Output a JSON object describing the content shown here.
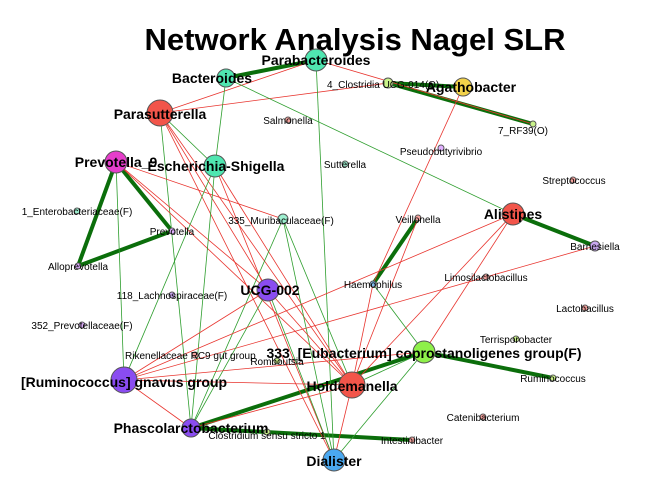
{
  "title": "Network Analysis Nagel SLR",
  "colors": {
    "positive_edge": "#2e9e2e",
    "strong_edge": "#0b6e0b",
    "negative_edge": "#e8352f",
    "node_border": "#555555"
  },
  "nodes": [
    {
      "id": "parabacteroides",
      "label": "Parabacteroides",
      "color": "#4fe6b0",
      "size": "large"
    },
    {
      "id": "bacteroides",
      "label": "Bacteroides",
      "color": "#4fe6b0",
      "size": "medium"
    },
    {
      "id": "clostridia_ucg014",
      "label": "4_Clostridia UCG-014(O)",
      "color": "#c9f28a",
      "size": "small"
    },
    {
      "id": "agathobacter",
      "label": "Agathobacter",
      "color": "#f2d24a",
      "size": "medium"
    },
    {
      "id": "rf39",
      "label": "7_RF39(O)",
      "color": "#c9f28a",
      "size": "tiny"
    },
    {
      "id": "parasutterella",
      "label": "Parasutterella",
      "color": "#f2554a",
      "size": "xlarge"
    },
    {
      "id": "salmonella",
      "label": "Salmonella",
      "color": "#f7a39e",
      "size": "tiny"
    },
    {
      "id": "pseudobutyrivibrio",
      "label": "Pseudobutyrivibrio",
      "color": "#e0b0ff",
      "size": "tiny"
    },
    {
      "id": "prevotella9",
      "label": "Prevotella_9",
      "color": "#e63ecb",
      "size": "large"
    },
    {
      "id": "escherichia",
      "label": "Escherichia-Shigella",
      "color": "#4fe6b0",
      "size": "large"
    },
    {
      "id": "sutterella",
      "label": "Sutterella",
      "color": "#9ef0d0",
      "size": "tiny"
    },
    {
      "id": "streptococcus",
      "label": "Streptococcus",
      "color": "#f7a39e",
      "size": "tiny"
    },
    {
      "id": "enterobacteriaceae",
      "label": "1_Enterobacteriaceae(F)",
      "color": "#9ef0d0",
      "size": "tiny"
    },
    {
      "id": "prevotella",
      "label": "Prevotella",
      "color": "#e0b0ff",
      "size": "tiny"
    },
    {
      "id": "muribaculaceae",
      "label": "335_Muribaculaceae(F)",
      "color": "#9ef0d0",
      "size": "small"
    },
    {
      "id": "veillonella",
      "label": "Veillonella",
      "color": "#f7a39e",
      "size": "tiny"
    },
    {
      "id": "alistipes",
      "label": "Alistipes",
      "color": "#f2554a",
      "size": "large"
    },
    {
      "id": "barnesiella",
      "label": "Barnesiella",
      "color": "#c9a8f0",
      "size": "small"
    },
    {
      "id": "alloprevotella",
      "label": "Alloprevotella",
      "color": "#e0b0ff",
      "size": "tiny"
    },
    {
      "id": "haemophilus",
      "label": "Haemophilus",
      "color": "#7fb8e8",
      "size": "tiny"
    },
    {
      "id": "limosilactobacillus",
      "label": "Limosilactobacillus",
      "color": "#f7a39e",
      "size": "tiny"
    },
    {
      "id": "lachnospiraceae",
      "label": "118_Lachnospiraceae(F)",
      "color": "#c9a8f0",
      "size": "tiny"
    },
    {
      "id": "ucg002",
      "label": "UCG-002",
      "color": "#8a4cf0",
      "size": "large"
    },
    {
      "id": "lactobacillus",
      "label": "Lactobacillus",
      "color": "#f7a39e",
      "size": "tiny"
    },
    {
      "id": "prevotellaceae",
      "label": "352_Prevotellaceae(F)",
      "color": "#e0b0ff",
      "size": "tiny"
    },
    {
      "id": "terrisporobacter",
      "label": "Terrisporobacter",
      "color": "#c9f28a",
      "size": "tiny"
    },
    {
      "id": "rikenellaceae",
      "label": "Rikenellaceae RC9 gut group",
      "color": "#f7a39e",
      "size": "tiny"
    },
    {
      "id": "romboutsia",
      "label": "Romboutsia",
      "color": "#c9f28a",
      "size": "tiny"
    },
    {
      "id": "coprostanoligenes",
      "label": "333_[Eubacterium] coprostanoligenes group(F)",
      "color": "#8ef04a",
      "size": "large"
    },
    {
      "id": "ruminococcus_gnavus",
      "label": "[Ruminococcus] gnavus group",
      "color": "#8a4cf0",
      "size": "xlarge"
    },
    {
      "id": "holdemanella",
      "label": "Holdemanella",
      "color": "#f2554a",
      "size": "xlarge"
    },
    {
      "id": "ruminococcus",
      "label": "Ruminococcus",
      "color": "#c9f28a",
      "size": "tiny"
    },
    {
      "id": "catenibacterium",
      "label": "Catenibacterium",
      "color": "#f7a39e",
      "size": "tiny"
    },
    {
      "id": "phascolarctobacterium",
      "label": "Phascolarctobacterium",
      "color": "#8a4cf0",
      "size": "medium"
    },
    {
      "id": "clostridium_ss1",
      "label": "Clostridium sensu stricto 1",
      "color": "#c9f28a",
      "size": "tiny"
    },
    {
      "id": "intestinibacter",
      "label": "Intestinibacter",
      "color": "#f7a39e",
      "size": "tiny"
    },
    {
      "id": "dialister",
      "label": "Dialister",
      "color": "#4aa8f0",
      "size": "large"
    }
  ],
  "edges": [
    {
      "source": "bacteroides",
      "target": "parabacteroides",
      "sign": "positive",
      "strength": "strong"
    },
    {
      "source": "clostridia_ucg014",
      "target": "agathobacter",
      "sign": "positive",
      "strength": "strong"
    },
    {
      "source": "clostridia_ucg014",
      "target": "rf39",
      "sign": "positive",
      "strength": "strong"
    },
    {
      "source": "prevotella9",
      "target": "alloprevotella",
      "sign": "positive",
      "strength": "strong"
    },
    {
      "source": "prevotella9",
      "target": "prevotella",
      "sign": "positive",
      "strength": "strong"
    },
    {
      "source": "prevotella",
      "target": "alloprevotella",
      "sign": "positive",
      "strength": "strong"
    },
    {
      "source": "veillonella",
      "target": "haemophilus",
      "sign": "positive",
      "strength": "strong"
    },
    {
      "source": "coprostanoligenes",
      "target": "phascolarctobacterium",
      "sign": "positive",
      "strength": "strong"
    },
    {
      "source": "phascolarctobacterium",
      "target": "intestinibacter",
      "sign": "positive",
      "strength": "strong"
    },
    {
      "source": "alistipes",
      "target": "barnesiella",
      "sign": "positive",
      "strength": "strong"
    },
    {
      "source": "coprostanoligenes",
      "target": "ruminococcus",
      "sign": "positive",
      "strength": "strong"
    },
    {
      "source": "parasutterella",
      "target": "parabacteroides",
      "sign": "negative",
      "strength": "weak"
    },
    {
      "source": "parasutterella",
      "target": "clostridia_ucg014",
      "sign": "negative",
      "strength": "weak"
    },
    {
      "source": "parabacteroides",
      "target": "dialister",
      "sign": "positive",
      "strength": "weak"
    },
    {
      "source": "bacteroides",
      "target": "alistipes",
      "sign": "positive",
      "strength": "weak"
    },
    {
      "source": "bacteroides",
      "target": "escherichia",
      "sign": "positive",
      "strength": "weak"
    },
    {
      "source": "agathobacter",
      "target": "haemophilus",
      "sign": "negative",
      "strength": "weak"
    },
    {
      "source": "parasutterella",
      "target": "ucg002",
      "sign": "negative",
      "strength": "weak"
    },
    {
      "source": "parasutterella",
      "target": "holdemanella",
      "sign": "negative",
      "strength": "weak"
    },
    {
      "source": "parasutterella",
      "target": "phascolarctobacterium",
      "sign": "positive",
      "strength": "weak"
    },
    {
      "source": "parasutterella",
      "target": "dialister",
      "sign": "negative",
      "strength": "weak"
    },
    {
      "source": "parasutterella",
      "target": "escherichia",
      "sign": "positive",
      "strength": "weak"
    },
    {
      "source": "prevotella9",
      "target": "muribaculaceae",
      "sign": "negative",
      "strength": "weak"
    },
    {
      "source": "prevotella9",
      "target": "holdemanella",
      "sign": "negative",
      "strength": "weak"
    },
    {
      "source": "prevotella9",
      "target": "ucg002",
      "sign": "negative",
      "strength": "weak"
    },
    {
      "source": "escherichia",
      "target": "holdemanella",
      "sign": "negative",
      "strength": "weak"
    },
    {
      "source": "escherichia",
      "target": "ruminococcus_gnavus",
      "sign": "positive",
      "strength": "weak"
    },
    {
      "source": "escherichia",
      "target": "phascolarctobacterium",
      "sign": "positive",
      "strength": "weak"
    },
    {
      "source": "escherichia",
      "target": "dialister",
      "sign": "negative",
      "strength": "weak"
    },
    {
      "source": "muribaculaceae",
      "target": "phascolarctobacterium",
      "sign": "positive",
      "strength": "weak"
    },
    {
      "source": "muribaculaceae",
      "target": "dialister",
      "sign": "positive",
      "strength": "weak"
    },
    {
      "source": "muribaculaceae",
      "target": "holdemanella",
      "sign": "positive",
      "strength": "weak"
    },
    {
      "source": "alistipes",
      "target": "holdemanella",
      "sign": "negative",
      "strength": "weak"
    },
    {
      "source": "alistipes",
      "target": "coprostanoligenes",
      "sign": "negative",
      "strength": "weak"
    },
    {
      "source": "barnesiella",
      "target": "ruminococcus_gnavus",
      "sign": "negative",
      "strength": "weak"
    },
    {
      "source": "ucg002",
      "target": "ruminococcus_gnavus",
      "sign": "negative",
      "strength": "weak"
    },
    {
      "source": "ucg002",
      "target": "holdemanella",
      "sign": "negative",
      "strength": "weak"
    },
    {
      "source": "ucg002",
      "target": "phascolarctobacterium",
      "sign": "positive",
      "strength": "weak"
    },
    {
      "source": "ucg002",
      "target": "dialister",
      "sign": "positive",
      "strength": "weak"
    },
    {
      "source": "holdemanella",
      "target": "ruminococcus_gnavus",
      "sign": "negative",
      "strength": "weak"
    },
    {
      "source": "holdemanella",
      "target": "coprostanoligenes",
      "sign": "positive",
      "strength": "weak"
    },
    {
      "source": "holdemanella",
      "target": "dialister",
      "sign": "negative",
      "strength": "weak"
    },
    {
      "source": "holdemanella",
      "target": "phascolarctobacterium",
      "sign": "negative",
      "strength": "weak"
    },
    {
      "source": "ruminococcus_gnavus",
      "target": "phascolarctobacterium",
      "sign": "negative",
      "strength": "weak"
    },
    {
      "source": "ruminococcus_gnavus",
      "target": "coprostanoligenes",
      "sign": "negative",
      "strength": "weak"
    },
    {
      "source": "coprostanoligenes",
      "target": "dialister",
      "sign": "positive",
      "strength": "weak"
    },
    {
      "source": "coprostanoligenes",
      "target": "haemophilus",
      "sign": "positive",
      "strength": "weak"
    },
    {
      "source": "haemophilus",
      "target": "holdemanella",
      "sign": "negative",
      "strength": "weak"
    },
    {
      "source": "veillonella",
      "target": "holdemanella",
      "sign": "negative",
      "strength": "weak"
    },
    {
      "source": "rf39",
      "target": "parabacteroides",
      "sign": "negative",
      "strength": "weak"
    },
    {
      "source": "ruminococcus_gnavus",
      "target": "alistipes",
      "sign": "negative",
      "strength": "weak"
    },
    {
      "source": "prevotella9",
      "target": "ruminococcus_gnavus",
      "sign": "positive",
      "strength": "weak"
    }
  ]
}
